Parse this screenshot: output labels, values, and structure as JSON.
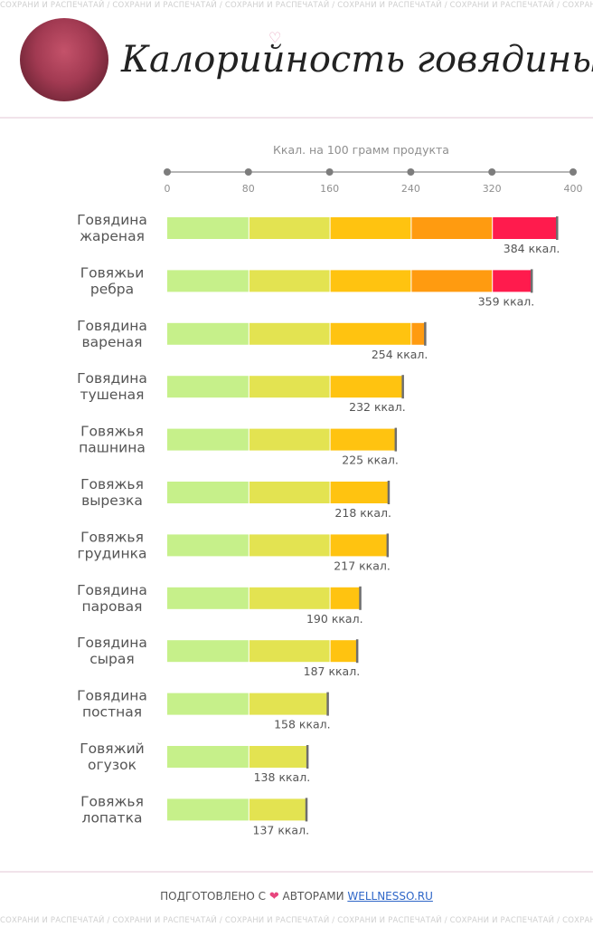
{
  "watermark_text": "СОХРАНИ И РАСПЕЧАТАЙ / СОХРАНИ И РАСПЕЧАТАЙ / СОХРАНИ И РАСПЕЧАТАЙ / СОХРАНИ И РАСПЕЧАТАЙ / СОХРАНИ И РАСПЕЧАТАЙ / СОХРАНИ И РАСПЕЧАТАЙ / СОХРАНИ И РАСПЕЧАТАЙ",
  "header": {
    "title": "Калорийность говядины",
    "photo_icon": "beef-steak-photo"
  },
  "footer": {
    "prefix": "ПОДГОТОВЛЕНО С",
    "heart_icon": "heart-icon",
    "heart_glyph": "❤",
    "middle": "АВТОРАМИ",
    "link": "WELLNESSO.RU"
  },
  "colors": {
    "seg": [
      "#c6f08a",
      "#e3e351",
      "#ffc310",
      "#ff9b10",
      "#ff1b4d"
    ],
    "axis": "#8a8a8a",
    "end_marker": "#6e6e6e"
  },
  "chart_data": {
    "type": "bar",
    "orientation": "horizontal",
    "stacked_bands": [
      0,
      80,
      160,
      240,
      320,
      400
    ],
    "title": "Ккал. на 100 грамм продукта",
    "xlim": [
      0,
      400
    ],
    "xticks": [
      0,
      80,
      160,
      240,
      320,
      400
    ],
    "categories": [
      [
        "Говядина",
        "жареная"
      ],
      [
        "Говяжьи",
        "ребра"
      ],
      [
        "Говядина",
        "вареная"
      ],
      [
        "Говядина",
        "тушеная"
      ],
      [
        "Говяжья",
        "пашнина"
      ],
      [
        "Говяжья",
        "вырезка"
      ],
      [
        "Говяжья",
        "грудинка"
      ],
      [
        "Говядина",
        "паровая"
      ],
      [
        "Говядина",
        "сырая"
      ],
      [
        "Говядина",
        "постная"
      ],
      [
        "Говяжий",
        "огузок"
      ],
      [
        "Говяжья",
        "лопатка"
      ]
    ],
    "values": [
      384,
      359,
      254,
      232,
      225,
      218,
      217,
      190,
      187,
      158,
      138,
      137
    ],
    "value_labels": [
      "384 ккал.",
      "359 ккал.",
      "254 ккал.",
      "232 ккал.",
      "225 ккал.",
      "218 ккал.",
      "217 ккал.",
      "190 ккал.",
      "187 ккал.",
      "158 ккал.",
      "138 ккал.",
      "137 ккал."
    ]
  }
}
